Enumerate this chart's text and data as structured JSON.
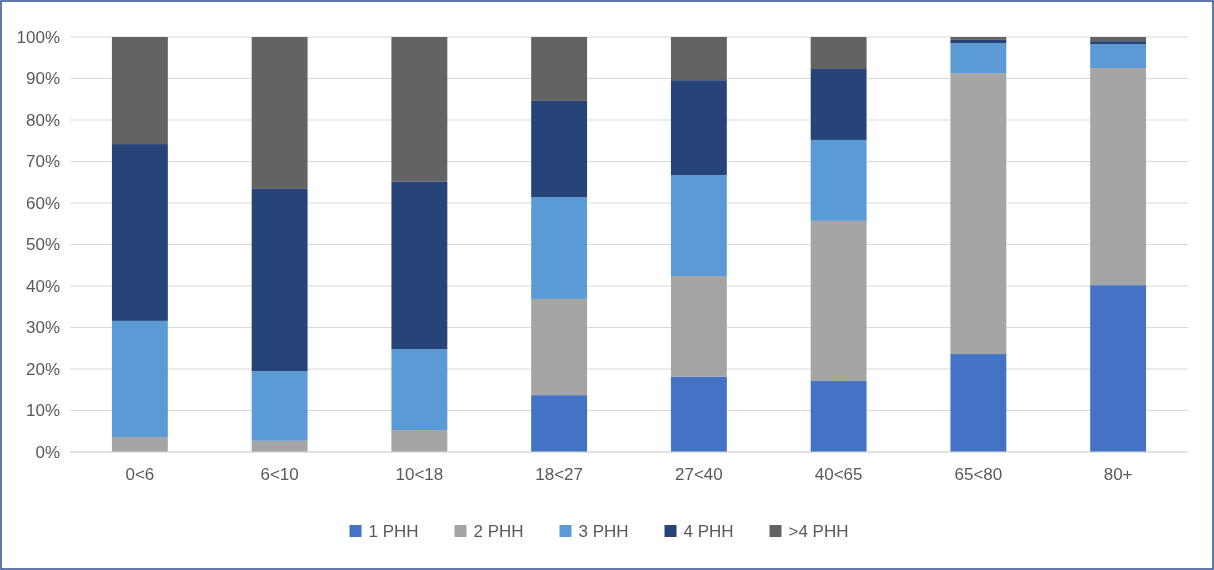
{
  "chart_data": {
    "type": "bar",
    "stacked": true,
    "categories": [
      "0<6",
      "6<10",
      "10<18",
      "18<27",
      "27<40",
      "40<65",
      "65<80",
      "80+"
    ],
    "series": [
      {
        "name": "1 PHH",
        "color": "#4472c4",
        "values": [
          0,
          0,
          0,
          13.7,
          18.1,
          17.1,
          23.6,
          40.2
        ]
      },
      {
        "name": "2 PHH",
        "color": "#a5a5a5",
        "values": [
          3.6,
          2.7,
          5.3,
          23.2,
          24.3,
          38.6,
          67.7,
          52.3
        ]
      },
      {
        "name": "3 PHH",
        "color": "#5b9bd5",
        "values": [
          28.0,
          16.8,
          19.5,
          24.5,
          24.3,
          19.5,
          7.2,
          5.8
        ]
      },
      {
        "name": "4 PHH",
        "color": "#264478",
        "values": [
          42.6,
          43.9,
          40.3,
          23.2,
          22.9,
          17.1,
          0.8,
          0.7
        ]
      },
      {
        "name": ">4 PHH",
        "color": "#636363",
        "values": [
          25.8,
          36.6,
          34.9,
          15.4,
          10.4,
          7.7,
          0.7,
          1.0
        ]
      }
    ],
    "ylim": [
      0,
      100
    ],
    "yticks": [
      {
        "value": 0,
        "label": "0%"
      },
      {
        "value": 10,
        "label": "10%"
      },
      {
        "value": 20,
        "label": "20%"
      },
      {
        "value": 30,
        "label": "30%"
      },
      {
        "value": 40,
        "label": "40%"
      },
      {
        "value": 50,
        "label": "50%"
      },
      {
        "value": 60,
        "label": "60%"
      },
      {
        "value": 70,
        "label": "70%"
      },
      {
        "value": 80,
        "label": "80%"
      },
      {
        "value": 90,
        "label": "90%"
      },
      {
        "value": 100,
        "label": "100%"
      }
    ],
    "grid": "y",
    "legend": "bottom"
  }
}
